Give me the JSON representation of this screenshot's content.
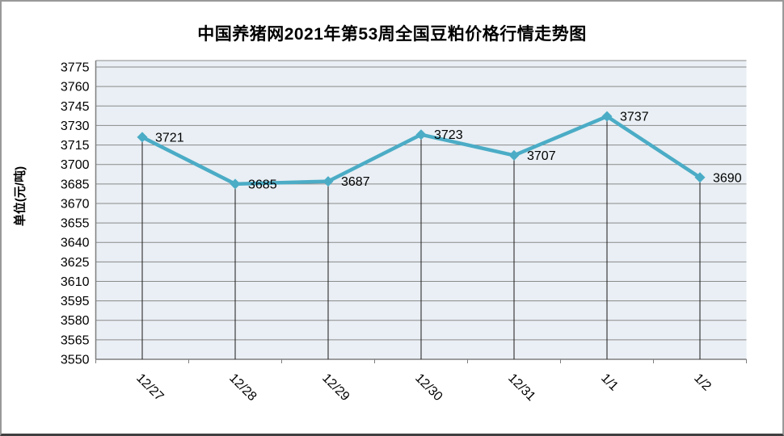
{
  "chart_data": {
    "type": "line",
    "title": "中国养猪网2021年第53周全国豆粕价格行情走势图",
    "categories": [
      "12/27",
      "12/28",
      "12/29",
      "12/30",
      "12/31",
      "1/1",
      "1/2"
    ],
    "values": [
      3721,
      3685,
      3687,
      3723,
      3707,
      3737,
      3690
    ],
    "xlabel": "",
    "ylabel": "单位(元/吨)",
    "ylim": [
      3550,
      3780
    ],
    "y_ticks": [
      3550,
      3565,
      3580,
      3595,
      3610,
      3625,
      3640,
      3655,
      3670,
      3685,
      3700,
      3715,
      3730,
      3745,
      3760,
      3775
    ],
    "grid": "horizontal-major",
    "legend": "none",
    "marker_style": "diamond",
    "features": {
      "drop_lines": true,
      "x_label_rotation_deg": 45,
      "data_labels": "right-of-point"
    },
    "colors": {
      "line": "#4BACC6",
      "marker": "#4BACC6",
      "plot_background": "#E9EFF4",
      "gridline": "#8A8A8A",
      "axis": "#7F7F7F",
      "drop_line": "#1A1A1A",
      "text": "#000000"
    }
  }
}
